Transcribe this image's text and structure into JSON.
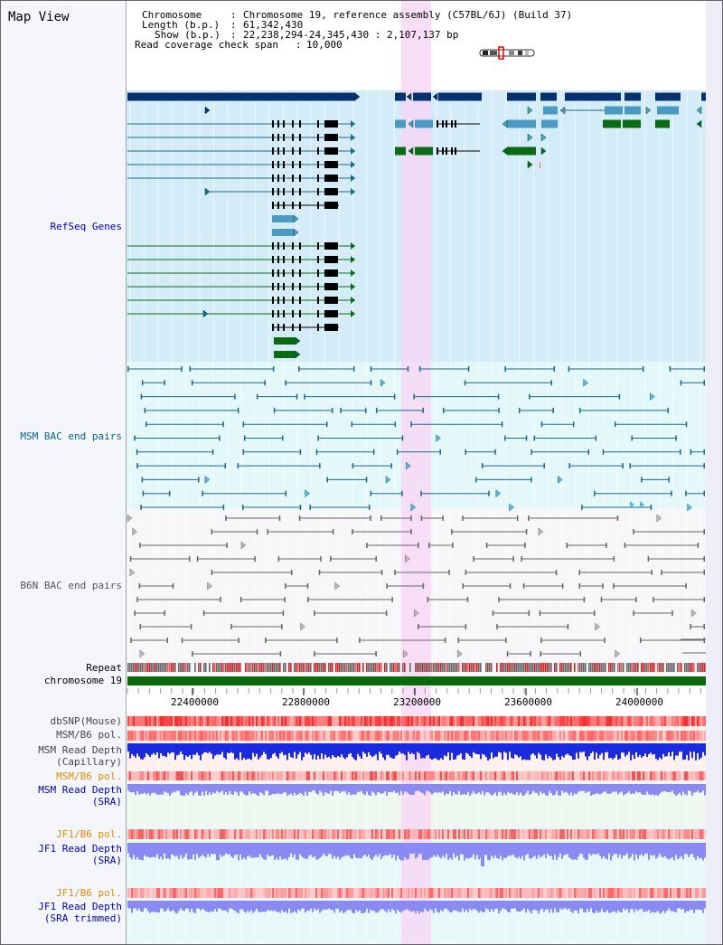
{
  "title": "Map View",
  "info": {
    "chromosome_label": "Chromosome",
    "chromosome_value": "Chromosome 19, reference assembly (C57BL/6J) (Build 37)",
    "length_label": "Length (b.p.)",
    "length_value": "61,342,430",
    "show_label": "Show (b.p.)",
    "show_value": "22,238,294-24,345,430 : 2,107,137 bp",
    "coverage_label": "Read coverage check span",
    "coverage_value": "10,000"
  },
  "tracks": {
    "refseq": "RefSeq Genes",
    "msm_bac": "MSM BAC end pairs",
    "b6n_bac": "B6N BAC end pairs",
    "repeat": "Repeat",
    "chromosome": "chromosome 19",
    "dbsnp": "dbSNP(Mouse)",
    "msm_b6_pol": "MSM/B6 pol.",
    "msm_depth_cap_1": "MSM Read Depth",
    "msm_depth_cap_2": "(Capillary)",
    "msm_b6_pol_sra": "MSM/B6 pol.",
    "msm_depth_sra_1": "MSM Read Depth",
    "msm_depth_sra_2": "(SRA)",
    "jf1_b6_pol": "JF1/B6 pol.",
    "jf1_depth_sra_1": "JF1 Read Depth",
    "jf1_depth_sra_2": "(SRA)",
    "jf1_b6_pol_trim": "JF1/B6 pol.",
    "jf1_depth_trim_1": "JF1 Read Depth",
    "jf1_depth_trim_2": "(SRA trimmed)"
  },
  "axis": {
    "ticks": [
      "22400000",
      "22800000",
      "23200000",
      "23600000",
      "24000000"
    ]
  },
  "colors": {
    "refseq_dark": "#06306e",
    "refseq_light": "#4a9ac4",
    "refseq_green": "#0b6b14",
    "msm_line": "#1a6a8a",
    "b6n_line": "#666666",
    "highlight": "#f7d6f5",
    "chromosome": "#0a6a0a",
    "depth_blue": "#1a2adf",
    "depth_light": "#8a8af4",
    "label_blue": "#0000aa",
    "label_orange": "#e08a00",
    "label_teal": "#00668a"
  }
}
